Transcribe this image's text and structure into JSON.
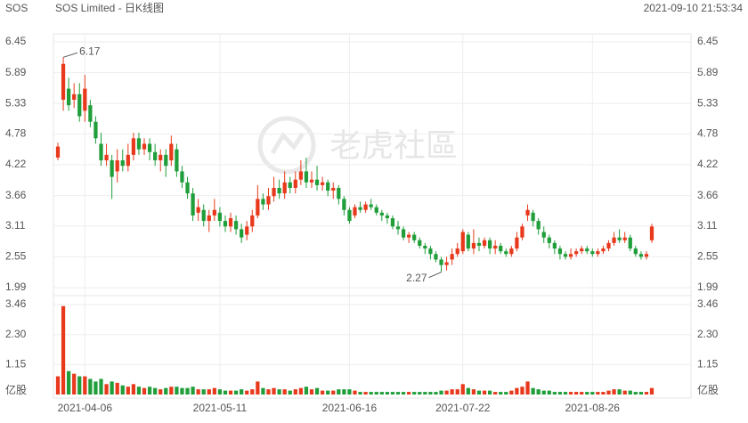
{
  "header": {
    "symbol": "SOS",
    "title": "SOS Limited - 日K线图",
    "timestamp": "2021-09-10 21:53:34"
  },
  "watermark": "老虎社區",
  "chart_data": {
    "type": "candlestick",
    "up_color": "#e8391c",
    "down_color": "#1f9e3a",
    "ylim": [
      1.99,
      6.45
    ],
    "yticks": [
      1.99,
      2.55,
      3.11,
      3.66,
      4.22,
      4.78,
      5.33,
      5.89,
      6.45
    ],
    "grid": true,
    "volume_unit": "亿股",
    "volume_ylim": [
      0,
      3.46
    ],
    "volume_yticks": [
      1.15,
      {
        "value": 2.3,
        "label": "2.30"
      },
      3.46
    ],
    "categories": [
      null,
      null,
      null,
      null,
      null,
      "2021-04-06",
      null,
      null,
      null,
      null,
      null,
      null,
      null,
      null,
      null,
      null,
      null,
      null,
      null,
      null,
      null,
      null,
      null,
      null,
      null,
      null,
      null,
      null,
      null,
      null,
      "2021-05-11",
      null,
      null,
      null,
      null,
      null,
      null,
      null,
      null,
      null,
      null,
      null,
      null,
      null,
      null,
      null,
      null,
      null,
      null,
      null,
      null,
      null,
      null,
      null,
      "2021-06-16",
      null,
      null,
      null,
      null,
      null,
      null,
      null,
      null,
      null,
      null,
      null,
      null,
      null,
      null,
      null,
      null,
      null,
      null,
      null,
      null,
      "2021-07-22",
      null,
      null,
      null,
      null,
      null,
      null,
      null,
      null,
      null,
      null,
      null,
      null,
      null,
      null,
      null,
      null,
      null,
      null,
      null,
      null,
      null,
      null,
      null,
      "2021-08-26",
      null,
      null,
      null,
      null,
      null,
      null,
      null,
      null,
      null,
      null,
      null
    ],
    "candles": [
      [
        4.35,
        4.55,
        4.3,
        4.62
      ],
      [
        5.4,
        6.05,
        5.2,
        6.17
      ],
      [
        5.6,
        5.3,
        5.2,
        5.8
      ],
      [
        5.4,
        5.5,
        5.25,
        5.7
      ],
      [
        5.5,
        5.1,
        5.0,
        5.7
      ],
      [
        5.2,
        5.6,
        5.0,
        5.85
      ],
      [
        5.3,
        5.0,
        4.9,
        5.4
      ],
      [
        5.0,
        4.7,
        4.6,
        5.1
      ],
      [
        4.6,
        4.3,
        4.2,
        4.8
      ],
      [
        4.3,
        4.4,
        4.2,
        4.6
      ],
      [
        4.3,
        4.0,
        3.6,
        4.4
      ],
      [
        4.1,
        4.3,
        3.9,
        4.5
      ],
      [
        4.3,
        4.2,
        4.1,
        4.5
      ],
      [
        4.2,
        4.4,
        4.1,
        4.6
      ],
      [
        4.4,
        4.7,
        4.3,
        4.8
      ],
      [
        4.7,
        4.5,
        4.4,
        4.8
      ],
      [
        4.5,
        4.6,
        4.4,
        4.7
      ],
      [
        4.6,
        4.45,
        4.3,
        4.7
      ],
      [
        4.45,
        4.3,
        4.2,
        4.6
      ],
      [
        4.3,
        4.4,
        4.1,
        4.5
      ],
      [
        4.4,
        4.2,
        4.0,
        4.5
      ],
      [
        4.3,
        4.6,
        4.2,
        4.75
      ],
      [
        4.5,
        4.1,
        4.0,
        4.6
      ],
      [
        4.1,
        3.9,
        3.8,
        4.2
      ],
      [
        3.9,
        3.7,
        3.6,
        4.0
      ],
      [
        3.7,
        3.3,
        3.2,
        3.8
      ],
      [
        3.35,
        3.45,
        3.2,
        3.6
      ],
      [
        3.4,
        3.2,
        3.1,
        3.5
      ],
      [
        3.2,
        3.3,
        3.0,
        3.4
      ],
      [
        3.3,
        3.4,
        3.2,
        3.6
      ],
      [
        3.35,
        3.2,
        3.1,
        3.45
      ],
      [
        3.2,
        3.1,
        3.0,
        3.3
      ],
      [
        3.1,
        3.25,
        3.0,
        3.35
      ],
      [
        3.2,
        3.05,
        2.95,
        3.3
      ],
      [
        3.05,
        2.9,
        2.8,
        3.15
      ],
      [
        2.95,
        3.1,
        2.85,
        3.2
      ],
      [
        3.1,
        3.3,
        3.0,
        3.4
      ],
      [
        3.3,
        3.6,
        3.25,
        3.85
      ],
      [
        3.6,
        3.5,
        3.4,
        3.7
      ],
      [
        3.5,
        3.65,
        3.4,
        3.8
      ],
      [
        3.65,
        3.8,
        3.55,
        4.0
      ],
      [
        3.8,
        3.7,
        3.6,
        3.95
      ],
      [
        3.7,
        3.9,
        3.6,
        4.1
      ],
      [
        3.9,
        3.8,
        3.7,
        4.0
      ],
      [
        3.8,
        3.95,
        3.7,
        4.1
      ],
      [
        3.95,
        4.1,
        3.85,
        4.3
      ],
      [
        4.1,
        3.9,
        3.8,
        4.35
      ],
      [
        3.9,
        3.95,
        3.8,
        4.1
      ],
      [
        3.95,
        3.85,
        3.75,
        4.2
      ],
      [
        3.85,
        3.9,
        3.75,
        4.0
      ],
      [
        3.9,
        3.75,
        3.65,
        3.95
      ],
      [
        3.75,
        3.8,
        3.6,
        3.9
      ],
      [
        3.8,
        3.6,
        3.5,
        3.85
      ],
      [
        3.6,
        3.4,
        3.3,
        3.65
      ],
      [
        3.4,
        3.2,
        3.15,
        3.45
      ],
      [
        3.3,
        3.45,
        3.25,
        3.5
      ],
      [
        3.45,
        3.4,
        3.35,
        3.55
      ],
      [
        3.4,
        3.5,
        3.35,
        3.55
      ],
      [
        3.5,
        3.45,
        3.4,
        3.6
      ],
      [
        3.45,
        3.35,
        3.3,
        3.5
      ],
      [
        3.35,
        3.3,
        3.2,
        3.4
      ],
      [
        3.3,
        3.25,
        3.15,
        3.35
      ],
      [
        3.25,
        3.1,
        3.05,
        3.3
      ],
      [
        3.1,
        3.05,
        2.95,
        3.2
      ],
      [
        3.05,
        2.9,
        2.85,
        3.1
      ],
      [
        2.9,
        2.95,
        2.8,
        3.0
      ],
      [
        2.95,
        2.85,
        2.8,
        3.0
      ],
      [
        2.85,
        2.75,
        2.7,
        2.9
      ],
      [
        2.75,
        2.7,
        2.6,
        2.8
      ],
      [
        2.7,
        2.6,
        2.5,
        2.75
      ],
      [
        2.6,
        2.5,
        2.45,
        2.65
      ],
      [
        2.5,
        2.4,
        2.27,
        2.55
      ],
      [
        2.4,
        2.45,
        2.3,
        2.55
      ],
      [
        2.5,
        2.6,
        2.4,
        2.7
      ],
      [
        2.6,
        2.7,
        2.55,
        2.8
      ],
      [
        2.65,
        3.0,
        2.6,
        3.05
      ],
      [
        2.95,
        2.7,
        2.65,
        3.0
      ],
      [
        2.7,
        2.8,
        2.6,
        3.05
      ],
      [
        2.8,
        2.75,
        2.65,
        2.9
      ],
      [
        2.75,
        2.85,
        2.7,
        2.9
      ],
      [
        2.85,
        2.7,
        2.6,
        2.9
      ],
      [
        2.7,
        2.75,
        2.6,
        2.85
      ],
      [
        2.75,
        2.65,
        2.6,
        2.8
      ],
      [
        2.65,
        2.6,
        2.55,
        2.7
      ],
      [
        2.6,
        2.7,
        2.55,
        2.75
      ],
      [
        2.7,
        2.9,
        2.65,
        3.0
      ],
      [
        2.9,
        3.1,
        2.85,
        3.15
      ],
      [
        3.3,
        3.4,
        3.2,
        3.5
      ],
      [
        3.35,
        3.2,
        3.1,
        3.4
      ],
      [
        3.2,
        3.05,
        2.95,
        3.25
      ],
      [
        3.0,
        2.9,
        2.8,
        3.1
      ],
      [
        2.9,
        2.8,
        2.7,
        2.95
      ],
      [
        2.8,
        2.7,
        2.6,
        2.85
      ],
      [
        2.7,
        2.6,
        2.5,
        2.75
      ],
      [
        2.6,
        2.55,
        2.5,
        2.65
      ],
      [
        2.55,
        2.6,
        2.5,
        2.7
      ],
      [
        2.6,
        2.65,
        2.55,
        2.7
      ],
      [
        2.65,
        2.7,
        2.6,
        2.75
      ],
      [
        2.7,
        2.65,
        2.6,
        2.75
      ],
      [
        2.65,
        2.6,
        2.55,
        2.7
      ],
      [
        2.6,
        2.65,
        2.55,
        2.7
      ],
      [
        2.65,
        2.7,
        2.6,
        2.75
      ],
      [
        2.7,
        2.8,
        2.65,
        2.85
      ],
      [
        2.8,
        2.9,
        2.75,
        3.0
      ],
      [
        2.9,
        2.85,
        2.8,
        3.05
      ],
      [
        2.85,
        2.9,
        2.8,
        3.0
      ],
      [
        2.9,
        2.7,
        2.65,
        2.95
      ],
      [
        2.7,
        2.6,
        2.55,
        2.75
      ],
      [
        2.6,
        2.55,
        2.5,
        2.65
      ],
      [
        2.55,
        2.6,
        2.5,
        2.65
      ],
      [
        2.85,
        3.1,
        2.8,
        3.15
      ]
    ],
    "volumes": [
      0.7,
      3.4,
      0.9,
      0.8,
      0.7,
      0.7,
      0.6,
      0.5,
      0.6,
      0.4,
      0.5,
      0.45,
      0.35,
      0.3,
      0.4,
      0.3,
      0.25,
      0.3,
      0.25,
      0.2,
      0.25,
      0.3,
      0.3,
      0.25,
      0.25,
      0.3,
      0.2,
      0.2,
      0.2,
      0.25,
      0.2,
      0.15,
      0.15,
      0.15,
      0.2,
      0.15,
      0.2,
      0.5,
      0.25,
      0.2,
      0.25,
      0.2,
      0.2,
      0.15,
      0.2,
      0.25,
      0.3,
      0.2,
      0.25,
      0.15,
      0.15,
      0.15,
      0.2,
      0.2,
      0.2,
      0.15,
      0.1,
      0.1,
      0.1,
      0.1,
      0.1,
      0.1,
      0.1,
      0.1,
      0.1,
      0.1,
      0.1,
      0.1,
      0.1,
      0.1,
      0.1,
      0.15,
      0.15,
      0.2,
      0.2,
      0.4,
      0.25,
      0.2,
      0.15,
      0.15,
      0.15,
      0.1,
      0.1,
      0.1,
      0.15,
      0.25,
      0.3,
      0.5,
      0.25,
      0.2,
      0.15,
      0.15,
      0.1,
      0.1,
      0.1,
      0.1,
      0.1,
      0.1,
      0.1,
      0.1,
      0.1,
      0.1,
      0.15,
      0.2,
      0.2,
      0.15,
      0.15,
      0.1,
      0.1,
      0.1,
      0.25
    ]
  }
}
